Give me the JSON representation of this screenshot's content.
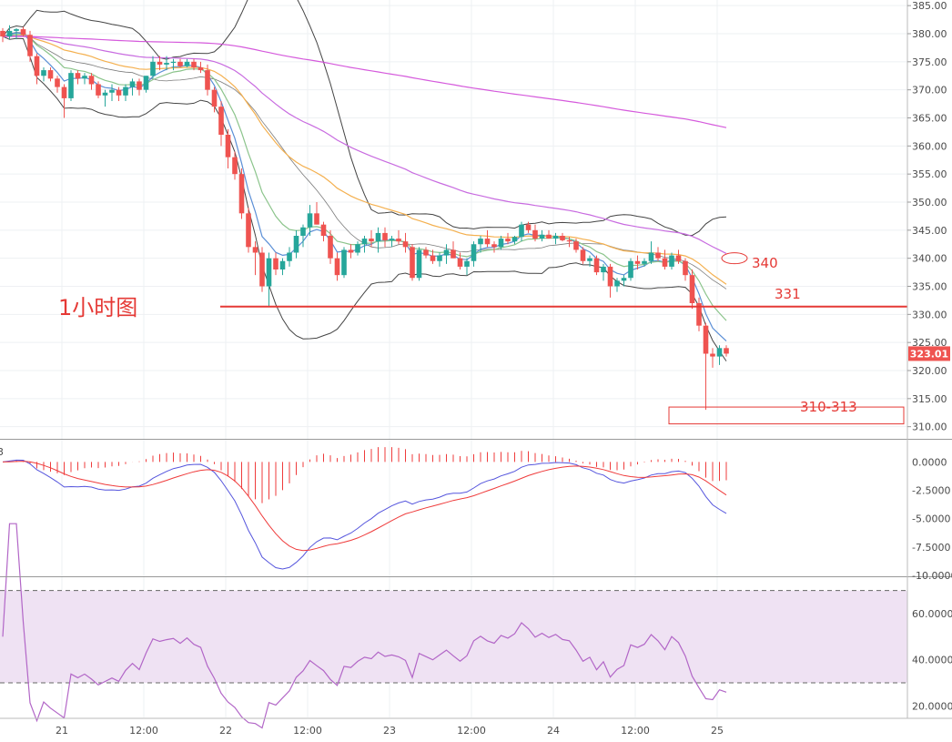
{
  "colors": {
    "bull": "#26a69a",
    "bear": "#ef5350",
    "ma_fast": "#5b8fd6",
    "ma_mid": "#8bc48b",
    "ma_slow": "#f4b04f",
    "ma_long": "#c86be0",
    "ma_vlong": "#d048d8",
    "bollinger": "#444444",
    "macd_line": "#5555dd",
    "signal_line": "#ef3b3b",
    "annotation": "#e53935",
    "rsi_band": "#efe2f3",
    "rsi_line": "#b266c7"
  },
  "annotations": {
    "timeframe_label": "1小时图",
    "resistance_label": "340",
    "support_label": "331",
    "target_label": "310-313"
  },
  "chart_data": [
    {
      "type": "candlestick",
      "panel": "price",
      "title": "",
      "ylim": [
        308,
        386
      ],
      "y_ticks": [
        "385.00",
        "380.00",
        "375.00",
        "370.00",
        "365.00",
        "360.00",
        "355.00",
        "350.00",
        "345.00",
        "340.00",
        "335.00",
        "330.00",
        "325.00",
        "320.00",
        "315.00",
        "310.00"
      ],
      "x_ticks": [
        "21",
        "12:00",
        "22",
        "12:00",
        "23",
        "12:00",
        "24",
        "12:00",
        "25"
      ],
      "x_tick_hours": [
        12,
        24,
        36,
        48,
        60,
        72,
        84,
        96,
        108
      ],
      "last_price_label": "323.01",
      "horizontal_line": 331.4,
      "target_zone": [
        310.5,
        313.5
      ],
      "resistance_marker": 340,
      "candles": [
        [
          380.5,
          381,
          378.5,
          379.5
        ],
        [
          379.5,
          381.5,
          379,
          380.5
        ],
        [
          380.5,
          381,
          379,
          380.8
        ],
        [
          380.8,
          381.2,
          379.5,
          379.8
        ],
        [
          379.8,
          380.5,
          375,
          376
        ],
        [
          376,
          376.5,
          371,
          372.5
        ],
        [
          372.5,
          374,
          371.5,
          373.5
        ],
        [
          373.5,
          374,
          371.5,
          372
        ],
        [
          372,
          372.5,
          369.5,
          370.5
        ],
        [
          370.5,
          371,
          365,
          368.5
        ],
        [
          368.5,
          373.5,
          368,
          373
        ],
        [
          373,
          373.5,
          371,
          372
        ],
        [
          372,
          373,
          371,
          372.5
        ],
        [
          372.5,
          373,
          370,
          371
        ],
        [
          371,
          371.5,
          368.5,
          369
        ],
        [
          369,
          370,
          367,
          369.5
        ],
        [
          369.5,
          371,
          368,
          370
        ],
        [
          370,
          370.5,
          368,
          369
        ],
        [
          369,
          371,
          368,
          370.5
        ],
        [
          370.5,
          372,
          369,
          371.5
        ],
        [
          371.5,
          372,
          369,
          370
        ],
        [
          370,
          372.5,
          369.5,
          372.5
        ],
        [
          372.5,
          376,
          372,
          375
        ],
        [
          375,
          376,
          373.5,
          374.5
        ],
        [
          374.5,
          376,
          373.5,
          374.8
        ],
        [
          374.8,
          375.5,
          373.5,
          375
        ],
        [
          375,
          375.5,
          374,
          374.2
        ],
        [
          374.2,
          375.5,
          374,
          375
        ],
        [
          375,
          375.5,
          373.5,
          374
        ],
        [
          374,
          375,
          373,
          373.5
        ],
        [
          373.5,
          374.5,
          369,
          370
        ],
        [
          370,
          370.5,
          366,
          367
        ],
        [
          367,
          368,
          360,
          362
        ],
        [
          362,
          363,
          356,
          358
        ],
        [
          358,
          359,
          354,
          355
        ],
        [
          355,
          356,
          347,
          348
        ],
        [
          348,
          349,
          341,
          342
        ],
        [
          342,
          343,
          337,
          341
        ],
        [
          341,
          342,
          334,
          335
        ],
        [
          335,
          341,
          331.5,
          340
        ],
        [
          340,
          341,
          337,
          338
        ],
        [
          338,
          340,
          337,
          339.5
        ],
        [
          339.5,
          342,
          338.5,
          341
        ],
        [
          341,
          345,
          340,
          344
        ],
        [
          344,
          346,
          342,
          345.5
        ],
        [
          345.5,
          349.5,
          344,
          348
        ],
        [
          348,
          350,
          346,
          346
        ],
        [
          346,
          346.5,
          343,
          344
        ],
        [
          344,
          345,
          339,
          340
        ],
        [
          340,
          341,
          336,
          337
        ],
        [
          337,
          342,
          336.5,
          341.5
        ],
        [
          341.5,
          342.5,
          340,
          341
        ],
        [
          341,
          343,
          340.5,
          342.5
        ],
        [
          342.5,
          344,
          341,
          343.5
        ],
        [
          343.5,
          345,
          342,
          343
        ],
        [
          343,
          345.5,
          341,
          344.5
        ],
        [
          344.5,
          345.5,
          342,
          343.2
        ],
        [
          343.2,
          344,
          342,
          343.5
        ],
        [
          343.5,
          345,
          342.5,
          343
        ],
        [
          343,
          344.5,
          341,
          342
        ],
        [
          342,
          342.5,
          336,
          336.5
        ],
        [
          336.5,
          342,
          336,
          341.5
        ],
        [
          341.5,
          342,
          340,
          340.5
        ],
        [
          340.5,
          341.5,
          339,
          339.5
        ],
        [
          339.5,
          341,
          338.5,
          340.5
        ],
        [
          340.5,
          342.5,
          339,
          341.5
        ],
        [
          341.5,
          343,
          340,
          340
        ],
        [
          340,
          341,
          338,
          338.5
        ],
        [
          338.5,
          340,
          337,
          339.5
        ],
        [
          339.5,
          343,
          338.5,
          342.5
        ],
        [
          342.5,
          344,
          341,
          343.5
        ],
        [
          343.5,
          345,
          342,
          342.5
        ],
        [
          342.5,
          343,
          341,
          342
        ],
        [
          342,
          344,
          341.5,
          343.5
        ],
        [
          343.5,
          344.5,
          342.5,
          343
        ],
        [
          343,
          344,
          342.5,
          343.8
        ],
        [
          343.8,
          346.5,
          343,
          346
        ],
        [
          346,
          346.5,
          344.5,
          345
        ],
        [
          345,
          346,
          343,
          343.5
        ],
        [
          343.5,
          345,
          343,
          344.2
        ],
        [
          344.2,
          345,
          343.5,
          343.5
        ],
        [
          343.5,
          344.5,
          342.5,
          344
        ],
        [
          344,
          344.5,
          343,
          343.2
        ],
        [
          343.2,
          343.8,
          342,
          343
        ],
        [
          343,
          343.5,
          341,
          341.5
        ],
        [
          341.5,
          342,
          339,
          339.5
        ],
        [
          339.5,
          340.5,
          338.5,
          340
        ],
        [
          340,
          340.5,
          337,
          337.5
        ],
        [
          337.5,
          339,
          336,
          338.5
        ],
        [
          338.5,
          339,
          333,
          335
        ],
        [
          335,
          336.5,
          334,
          336
        ],
        [
          336,
          337,
          335,
          336.5
        ],
        [
          336.5,
          340,
          336,
          339.5
        ],
        [
          339.5,
          340.5,
          338,
          339
        ],
        [
          339,
          340,
          338.5,
          339.5
        ],
        [
          339.5,
          343,
          339,
          341
        ],
        [
          341,
          342,
          339.5,
          340
        ],
        [
          340,
          341.5,
          338,
          338.5
        ],
        [
          338.5,
          341,
          338,
          340.5
        ],
        [
          340.5,
          341.5,
          339,
          339.5
        ],
        [
          339.5,
          340,
          336,
          337
        ],
        [
          337,
          338,
          331,
          332
        ],
        [
          332,
          333,
          327,
          328
        ],
        [
          328,
          328.5,
          313,
          323
        ],
        [
          323,
          324,
          320.5,
          322.5
        ],
        [
          322.5,
          324.5,
          321,
          324
        ],
        [
          324,
          324.5,
          322.5,
          323.01
        ]
      ]
    },
    {
      "type": "bar+line",
      "panel": "macd",
      "ylim": [
        -10,
        1.8
      ],
      "y_ticks": [
        "0.0000",
        "-2.5000",
        "-5.0000",
        "-7.5000",
        "-10.0000"
      ],
      "y_tick_values": [
        0,
        -2.5,
        -5,
        -7.5,
        -10
      ],
      "partial_left_label": "3"
    },
    {
      "type": "line",
      "panel": "rsi",
      "ylim": [
        15,
        75
      ],
      "y_ticks": [
        "60.0000",
        "40.0000",
        "20.0000"
      ],
      "y_tick_values": [
        60,
        40,
        20
      ],
      "bands": [
        70,
        30
      ]
    }
  ]
}
